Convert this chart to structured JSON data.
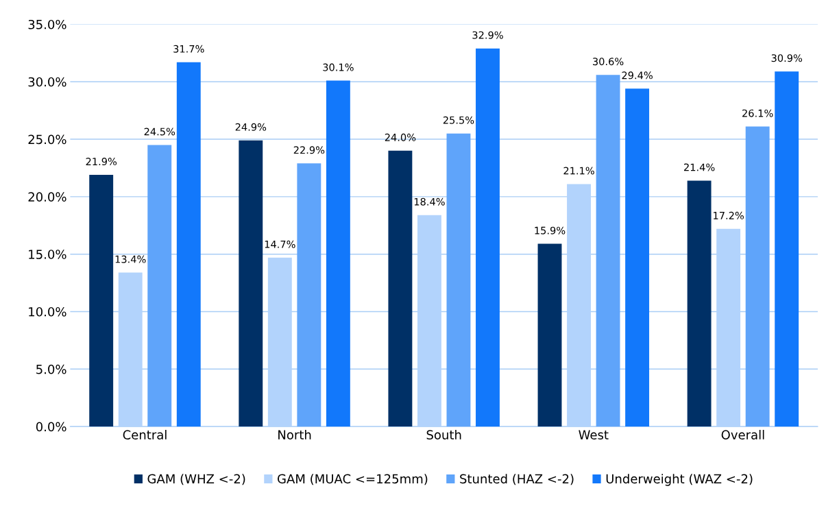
{
  "chart_data": {
    "type": "bar",
    "categories": [
      "Central",
      "North",
      "South",
      "West",
      "Overall"
    ],
    "series": [
      {
        "name": "GAM (WHZ <-2)",
        "color": "#003066",
        "values": [
          21.9,
          24.9,
          24.0,
          15.9,
          21.4
        ],
        "value_labels": [
          "21.9%",
          "24.9%",
          "24.0%",
          "15.9%",
          "21.4%"
        ]
      },
      {
        "name": "GAM (MUAC <=125mm)",
        "color": "#b2d3fc",
        "values": [
          13.4,
          14.7,
          18.4,
          21.1,
          17.2
        ],
        "value_labels": [
          "13.4%",
          "14.7%",
          "18.4%",
          "21.1%",
          "17.2%"
        ]
      },
      {
        "name": "Stunted (HAZ <-2)",
        "color": "#5fa4fa",
        "values": [
          24.5,
          22.9,
          25.5,
          30.6,
          26.1
        ],
        "value_labels": [
          "24.5%",
          "22.9%",
          "25.5%",
          "30.6%",
          "26.1%"
        ]
      },
      {
        "name": "Underweight (WAZ <-2)",
        "color": "#1278fb",
        "values": [
          31.7,
          30.1,
          32.9,
          29.4,
          30.9
        ],
        "value_labels": [
          "31.7%",
          "30.1%",
          "32.9%",
          "29.4%",
          "30.9%"
        ]
      }
    ],
    "ylim": [
      0,
      35
    ],
    "yticks": [
      {
        "value": 0,
        "label": "0.0%"
      },
      {
        "value": 5,
        "label": "5.0%"
      },
      {
        "value": 10,
        "label": "10.0%"
      },
      {
        "value": 15,
        "label": "15.0%"
      },
      {
        "value": 20,
        "label": "20.0%"
      },
      {
        "value": 25,
        "label": "25.0%"
      },
      {
        "value": 30,
        "label": "30.0%"
      },
      {
        "value": 35,
        "label": "35.0%"
      }
    ],
    "grid": "y",
    "legend": "bottom"
  }
}
